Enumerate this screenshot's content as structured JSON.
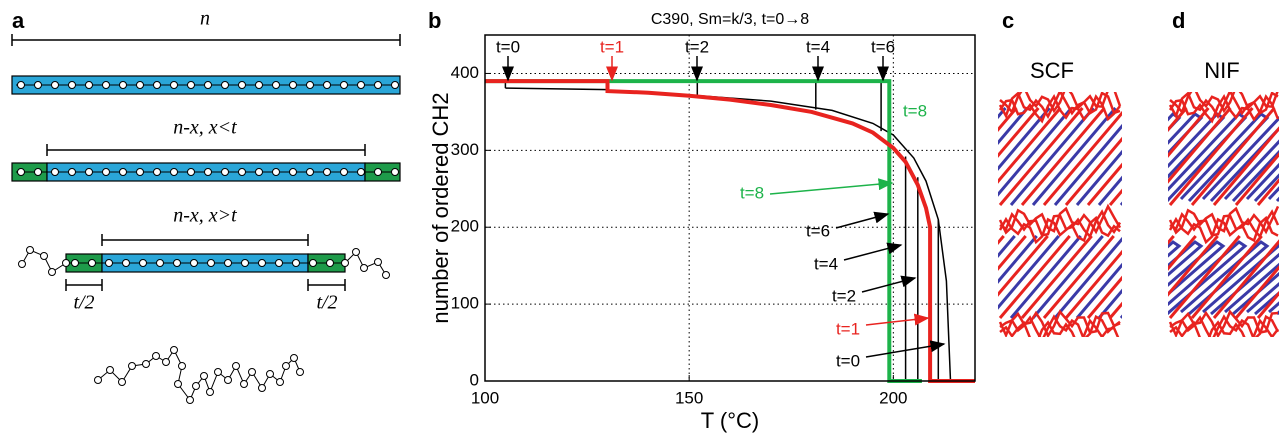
{
  "panel_a": {
    "label": "a",
    "top_label": "n",
    "middle_label": "n-x, x<t",
    "bottom_label": "n-x, x>t",
    "left_half": "t/2",
    "right_half": "t/2"
  },
  "chart_data": {
    "type": "line",
    "panel_label": "b",
    "title": "C390, Sm=k/3, t=0→8",
    "xlabel": "T (°C)",
    "ylabel": "number of ordered CH2",
    "xlim": [
      100,
      220
    ],
    "ylim": [
      0,
      450
    ],
    "xticks": [
      100,
      150,
      200
    ],
    "yticks": [
      0,
      100,
      200,
      300,
      400
    ],
    "grid": true,
    "series": [
      {
        "color": "#000000",
        "width": 1.5,
        "x": [
          105,
          130,
          130,
          150,
          170,
          185,
          195,
          200,
          205,
          208,
          211,
          213,
          214,
          220
        ],
        "values": [
          381,
          379,
          377,
          372,
          364,
          352,
          335,
          320,
          290,
          260,
          210,
          130,
          0,
          0
        ]
      },
      {
        "color": "#000000",
        "width": 1.5,
        "x": [
          105,
          105,
          null,
          152,
          152,
          null,
          181,
          181,
          null,
          197,
          197,
          null,
          203,
          203,
          null,
          206,
          206,
          null,
          211,
          211
        ],
        "values": [
          390,
          381,
          null,
          390,
          371,
          null,
          390,
          353,
          null,
          390,
          325,
          null,
          0,
          292,
          null,
          0,
          265,
          null,
          0,
          210
        ]
      },
      {
        "color": "#1db34a",
        "width": 4,
        "x": [
          100,
          199,
          199,
          207
        ],
        "values": [
          390,
          390,
          0,
          0
        ]
      },
      {
        "color": "#e8231f",
        "width": 4,
        "x": [
          100,
          130,
          130,
          140,
          150,
          160,
          170,
          180,
          190,
          195,
          200,
          203,
          206,
          208,
          209,
          209,
          220
        ],
        "values": [
          390,
          390,
          377,
          375,
          371,
          366,
          359,
          350,
          335,
          323,
          303,
          285,
          255,
          225,
          200,
          0,
          0
        ]
      }
    ],
    "annotations": [
      {
        "text": "t=0",
        "color": "#000000"
      },
      {
        "text": "t=1",
        "color": "#e8231f"
      },
      {
        "text": "t=2",
        "color": "#000000"
      },
      {
        "text": "t=4",
        "color": "#000000"
      },
      {
        "text": "t=6",
        "color": "#000000"
      },
      {
        "text": "t=8",
        "color": "#1db34a"
      },
      {
        "text": "t=8",
        "color": "#1db34a"
      },
      {
        "text": "t=6",
        "color": "#000000"
      },
      {
        "text": "t=4",
        "color": "#000000"
      },
      {
        "text": "t=2",
        "color": "#000000"
      },
      {
        "text": "t=1",
        "color": "#e8231f"
      },
      {
        "text": "t=0",
        "color": "#000000"
      }
    ]
  },
  "panel_c": {
    "label": "c",
    "title": "SCF"
  },
  "panel_d": {
    "label": "d",
    "title": "NIF"
  }
}
